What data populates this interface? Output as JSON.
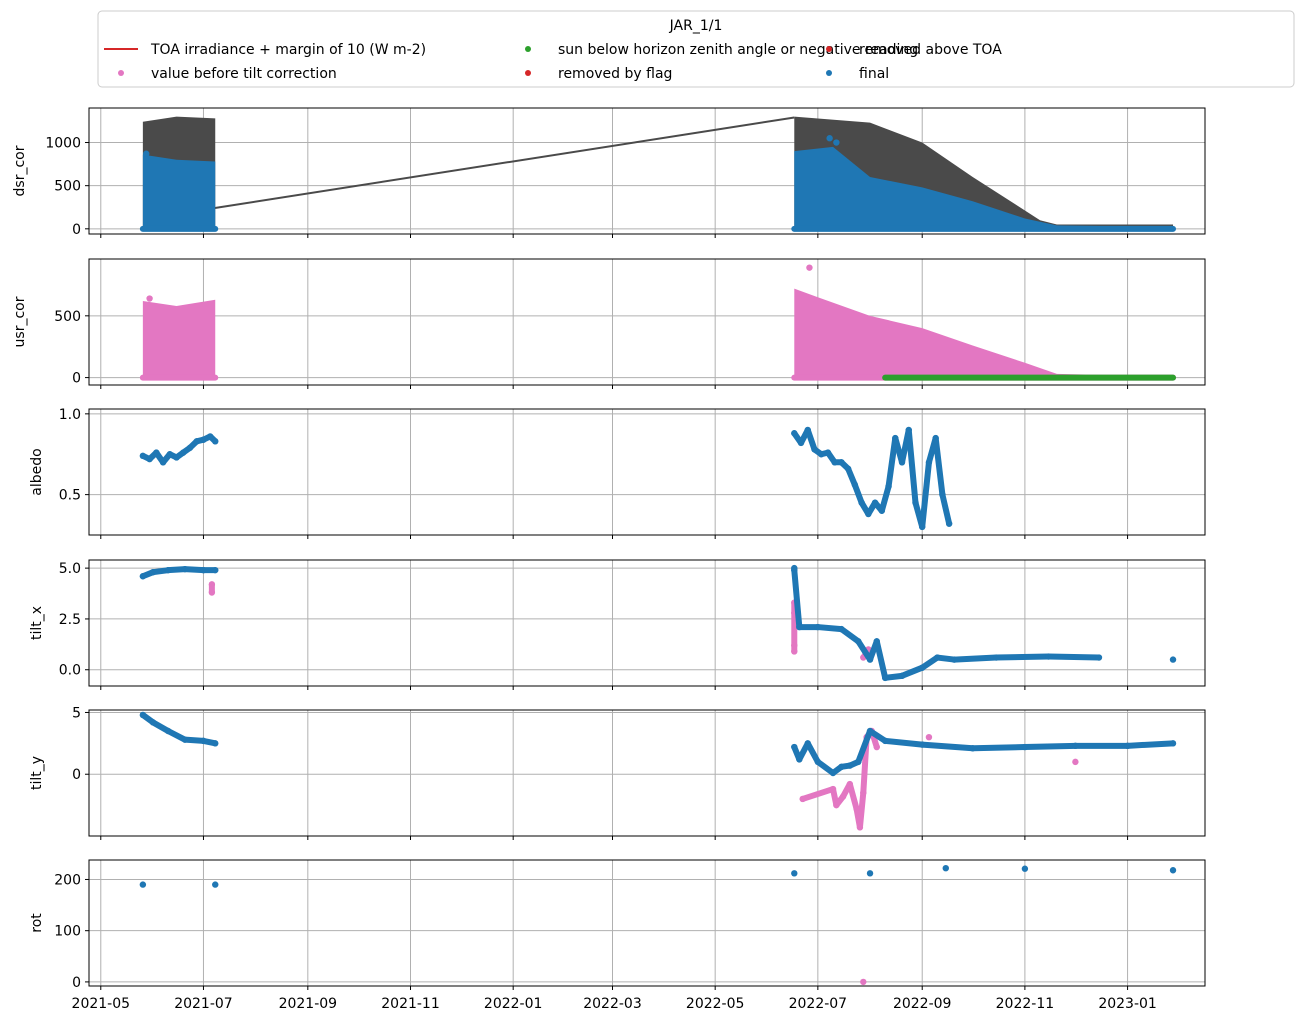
{
  "legend": {
    "title": "JAR_1/1",
    "entries": [
      {
        "label": "TOA irradiance + margin of 10 (W m-2)",
        "marker": "line",
        "color": "#d62728"
      },
      {
        "label": "value before tilt correction",
        "marker": "dot",
        "color": "#e377c2"
      },
      {
        "label": "sun below horizon zenith angle or negative reading",
        "marker": "dot",
        "color": "#2ca02c"
      },
      {
        "label": "removed by flag",
        "marker": "dot",
        "color": "#d62728"
      },
      {
        "label": "removed above TOA",
        "marker": "dot",
        "color": "#d62728"
      },
      {
        "label": "final",
        "marker": "dot",
        "color": "#1f77b4"
      }
    ]
  },
  "colors": {
    "final": "#1f77b4",
    "before_tilt": "#e377c2",
    "sun_below": "#2ca02c",
    "toa_fill": "#4a4a4a",
    "grid": "#b0b0b0"
  },
  "x_ticks": [
    "2021-05",
    "2021-07",
    "2021-09",
    "2021-11",
    "2022-01",
    "2022-03",
    "2022-05",
    "2022-07",
    "2022-09",
    "2022-11",
    "2023-01"
  ],
  "chart_data": [
    {
      "type": "scatter",
      "ylabel": "dsr_cor",
      "ylim": [
        -60,
        1400
      ],
      "yticks": [
        0,
        500,
        1000
      ],
      "grid": true,
      "x_range": [
        "2021-04-24",
        "2023-02-16"
      ],
      "segments": [
        [
          "2021-05-26",
          "2021-07-08"
        ],
        [
          "2022-06-17",
          "2023-01-28"
        ]
      ],
      "toa_line": {
        "x": [
          "2021-07-04",
          "2022-06-17"
        ],
        "y": [
          230,
          1290
        ]
      },
      "toa_envelope": [
        {
          "x": "2021-05-26",
          "y": 1240
        },
        {
          "x": "2021-06-15",
          "y": 1300
        },
        {
          "x": "2021-07-08",
          "y": 1280
        },
        {
          "x": "2022-06-17",
          "y": 1300
        },
        {
          "x": "2022-08-01",
          "y": 1230
        },
        {
          "x": "2022-09-01",
          "y": 1000
        },
        {
          "x": "2022-10-01",
          "y": 600
        },
        {
          "x": "2022-11-10",
          "y": 100
        },
        {
          "x": "2022-11-20",
          "y": 50
        },
        {
          "x": "2023-01-28",
          "y": 50
        }
      ],
      "series": [
        {
          "role": "final",
          "envelope": [
            {
              "x": "2021-05-26",
              "y": 860
            },
            {
              "x": "2021-06-15",
              "y": 800
            },
            {
              "x": "2021-07-08",
              "y": 780
            },
            {
              "x": "2022-06-17",
              "y": 900
            },
            {
              "x": "2022-07-10",
              "y": 950
            },
            {
              "x": "2022-08-01",
              "y": 600
            },
            {
              "x": "2022-09-01",
              "y": 480
            },
            {
              "x": "2022-10-01",
              "y": 320
            },
            {
              "x": "2022-11-01",
              "y": 120
            },
            {
              "x": "2022-11-20",
              "y": 40
            },
            {
              "x": "2023-01-28",
              "y": 20
            }
          ]
        }
      ],
      "outliers_final": [
        {
          "x": "2022-07-08",
          "y": 1050
        },
        {
          "x": "2022-07-12",
          "y": 1000
        },
        {
          "x": "2021-05-28",
          "y": 870
        }
      ]
    },
    {
      "type": "scatter",
      "ylabel": "usr_cor",
      "ylim": [
        -60,
        960
      ],
      "yticks": [
        0,
        500
      ],
      "grid": true,
      "x_range": [
        "2021-04-24",
        "2023-02-16"
      ],
      "series": [
        {
          "role": "before_tilt",
          "envelope": [
            {
              "x": "2021-05-26",
              "y": 620
            },
            {
              "x": "2021-06-15",
              "y": 580
            },
            {
              "x": "2021-07-08",
              "y": 630
            },
            {
              "x": "2022-06-17",
              "y": 720
            },
            {
              "x": "2022-07-01",
              "y": 650
            },
            {
              "x": "2022-08-01",
              "y": 500
            },
            {
              "x": "2022-09-01",
              "y": 400
            },
            {
              "x": "2022-10-01",
              "y": 260
            },
            {
              "x": "2022-11-01",
              "y": 120
            },
            {
              "x": "2022-11-20",
              "y": 30
            },
            {
              "x": "2023-01-28",
              "y": 10
            }
          ]
        },
        {
          "role": "sun_below",
          "x": [
            "2022-08-10",
            "2023-01-28"
          ],
          "y": 0
        }
      ],
      "outliers_before_tilt": [
        {
          "x": "2022-06-26",
          "y": 890
        },
        {
          "x": "2021-05-30",
          "y": 640
        }
      ]
    },
    {
      "type": "scatter",
      "ylabel": "albedo",
      "ylim": [
        0.25,
        1.03
      ],
      "yticks": [
        0.5,
        1.0
      ],
      "grid": true,
      "x_range": [
        "2021-04-24",
        "2023-02-16"
      ],
      "series": [
        {
          "role": "final",
          "points": [
            {
              "x": "2021-05-26",
              "y": 0.74
            },
            {
              "x": "2021-05-30",
              "y": 0.72
            },
            {
              "x": "2021-06-03",
              "y": 0.76
            },
            {
              "x": "2021-06-07",
              "y": 0.7
            },
            {
              "x": "2021-06-11",
              "y": 0.75
            },
            {
              "x": "2021-06-15",
              "y": 0.73
            },
            {
              "x": "2021-06-19",
              "y": 0.76
            },
            {
              "x": "2021-06-23",
              "y": 0.79
            },
            {
              "x": "2021-06-27",
              "y": 0.83
            },
            {
              "x": "2021-07-01",
              "y": 0.84
            },
            {
              "x": "2021-07-05",
              "y": 0.86
            },
            {
              "x": "2021-07-08",
              "y": 0.83
            },
            {
              "x": "2022-06-17",
              "y": 0.88
            },
            {
              "x": "2022-06-21",
              "y": 0.82
            },
            {
              "x": "2022-06-25",
              "y": 0.9
            },
            {
              "x": "2022-06-29",
              "y": 0.78
            },
            {
              "x": "2022-07-03",
              "y": 0.75
            },
            {
              "x": "2022-07-07",
              "y": 0.76
            },
            {
              "x": "2022-07-11",
              "y": 0.7
            },
            {
              "x": "2022-07-15",
              "y": 0.7
            },
            {
              "x": "2022-07-19",
              "y": 0.66
            },
            {
              "x": "2022-07-23",
              "y": 0.56
            },
            {
              "x": "2022-07-27",
              "y": 0.45
            },
            {
              "x": "2022-07-31",
              "y": 0.38
            },
            {
              "x": "2022-08-04",
              "y": 0.45
            },
            {
              "x": "2022-08-08",
              "y": 0.4
            },
            {
              "x": "2022-08-12",
              "y": 0.55
            },
            {
              "x": "2022-08-16",
              "y": 0.85
            },
            {
              "x": "2022-08-20",
              "y": 0.7
            },
            {
              "x": "2022-08-24",
              "y": 0.9
            },
            {
              "x": "2022-08-28",
              "y": 0.45
            },
            {
              "x": "2022-09-01",
              "y": 0.3
            },
            {
              "x": "2022-09-05",
              "y": 0.7
            },
            {
              "x": "2022-09-09",
              "y": 0.85
            },
            {
              "x": "2022-09-13",
              "y": 0.5
            },
            {
              "x": "2022-09-17",
              "y": 0.32
            }
          ]
        }
      ]
    },
    {
      "type": "scatter",
      "ylabel": "tilt_x",
      "ylim": [
        -0.8,
        5.4
      ],
      "yticks": [
        0.0,
        2.5,
        5.0
      ],
      "grid": true,
      "x_range": [
        "2021-04-24",
        "2023-02-16"
      ],
      "series": [
        {
          "role": "before_tilt",
          "points": [
            {
              "x": "2021-07-06",
              "y": 4.2
            },
            {
              "x": "2021-07-06",
              "y": 3.8
            },
            {
              "x": "2022-06-17",
              "y": 3.3
            },
            {
              "x": "2022-06-17",
              "y": 2.8
            },
            {
              "x": "2022-06-17",
              "y": 1.2
            },
            {
              "x": "2022-06-17",
              "y": 0.9
            },
            {
              "x": "2022-07-28",
              "y": 0.6
            },
            {
              "x": "2022-07-31",
              "y": 1.0
            }
          ]
        },
        {
          "role": "final",
          "points": [
            {
              "x": "2021-05-26",
              "y": 4.6
            },
            {
              "x": "2021-06-01",
              "y": 4.8
            },
            {
              "x": "2021-06-10",
              "y": 4.9
            },
            {
              "x": "2021-06-20",
              "y": 4.95
            },
            {
              "x": "2021-07-01",
              "y": 4.9
            },
            {
              "x": "2021-07-08",
              "y": 4.9
            },
            {
              "x": "2022-06-17",
              "y": 5.0
            },
            {
              "x": "2022-06-17",
              "y": 4.9
            },
            {
              "x": "2022-06-20",
              "y": 2.1
            },
            {
              "x": "2022-07-01",
              "y": 2.1
            },
            {
              "x": "2022-07-15",
              "y": 2.0
            },
            {
              "x": "2022-07-25",
              "y": 1.4
            },
            {
              "x": "2022-08-01",
              "y": 0.5
            },
            {
              "x": "2022-08-05",
              "y": 1.4
            },
            {
              "x": "2022-08-10",
              "y": -0.4
            },
            {
              "x": "2022-08-20",
              "y": -0.3
            },
            {
              "x": "2022-09-01",
              "y": 0.1
            },
            {
              "x": "2022-09-10",
              "y": 0.6
            },
            {
              "x": "2022-09-20",
              "y": 0.5
            },
            {
              "x": "2022-10-15",
              "y": 0.6
            },
            {
              "x": "2022-11-15",
              "y": 0.65
            },
            {
              "x": "2022-12-15",
              "y": 0.6
            },
            {
              "x": "2023-01-28",
              "y": 0.5
            }
          ]
        }
      ]
    },
    {
      "type": "scatter",
      "ylabel": "tilt_y",
      "ylim": [
        -5.0,
        5.2
      ],
      "yticks": [
        0,
        5
      ],
      "grid": true,
      "x_range": [
        "2021-04-24",
        "2023-02-16"
      ],
      "series": [
        {
          "role": "before_tilt",
          "points": [
            {
              "x": "2022-06-22",
              "y": -2.0
            },
            {
              "x": "2022-07-10",
              "y": -1.2
            },
            {
              "x": "2022-07-12",
              "y": -2.5
            },
            {
              "x": "2022-07-16",
              "y": -1.8
            },
            {
              "x": "2022-07-20",
              "y": -0.8
            },
            {
              "x": "2022-07-24",
              "y": -2.8
            },
            {
              "x": "2022-07-26",
              "y": -4.3
            },
            {
              "x": "2022-07-28",
              "y": -1.5
            },
            {
              "x": "2022-07-30",
              "y": 3.0
            },
            {
              "x": "2022-08-02",
              "y": 3.5
            },
            {
              "x": "2022-08-05",
              "y": 2.2
            },
            {
              "x": "2022-12-01",
              "y": 1.0
            },
            {
              "x": "2022-09-05",
              "y": 3.0
            }
          ]
        },
        {
          "role": "final",
          "points": [
            {
              "x": "2021-05-26",
              "y": 4.8
            },
            {
              "x": "2021-06-01",
              "y": 4.2
            },
            {
              "x": "2021-06-10",
              "y": 3.5
            },
            {
              "x": "2021-06-20",
              "y": 2.8
            },
            {
              "x": "2021-07-01",
              "y": 2.7
            },
            {
              "x": "2021-07-08",
              "y": 2.5
            },
            {
              "x": "2022-06-17",
              "y": 2.2
            },
            {
              "x": "2022-06-20",
              "y": 1.2
            },
            {
              "x": "2022-06-25",
              "y": 2.5
            },
            {
              "x": "2022-07-01",
              "y": 1.0
            },
            {
              "x": "2022-07-10",
              "y": 0.1
            },
            {
              "x": "2022-07-15",
              "y": 0.6
            },
            {
              "x": "2022-07-20",
              "y": 0.7
            },
            {
              "x": "2022-07-25",
              "y": 1.0
            },
            {
              "x": "2022-08-01",
              "y": 3.5
            },
            {
              "x": "2022-08-10",
              "y": 2.7
            },
            {
              "x": "2022-09-01",
              "y": 2.4
            },
            {
              "x": "2022-10-01",
              "y": 2.1
            },
            {
              "x": "2022-11-01",
              "y": 2.2
            },
            {
              "x": "2022-12-01",
              "y": 2.3
            },
            {
              "x": "2023-01-01",
              "y": 2.3
            },
            {
              "x": "2023-01-28",
              "y": 2.5
            }
          ]
        }
      ]
    },
    {
      "type": "scatter",
      "ylabel": "rot",
      "ylim": [
        -8,
        238
      ],
      "yticks": [
        0,
        100,
        200
      ],
      "grid": true,
      "x_range": [
        "2021-04-24",
        "2023-02-16"
      ],
      "series": [
        {
          "role": "before_tilt",
          "points": [
            {
              "x": "2022-07-28",
              "y": 0
            }
          ]
        },
        {
          "role": "final",
          "points": [
            {
              "x": "2021-05-26",
              "y": 190
            },
            {
              "x": "2021-07-08",
              "y": 190
            },
            {
              "x": "2022-06-17",
              "y": 212
            },
            {
              "x": "2022-08-01",
              "y": 212
            },
            {
              "x": "2022-09-15",
              "y": 222
            },
            {
              "x": "2022-11-01",
              "y": 221
            },
            {
              "x": "2023-01-28",
              "y": 218
            }
          ]
        }
      ]
    }
  ]
}
